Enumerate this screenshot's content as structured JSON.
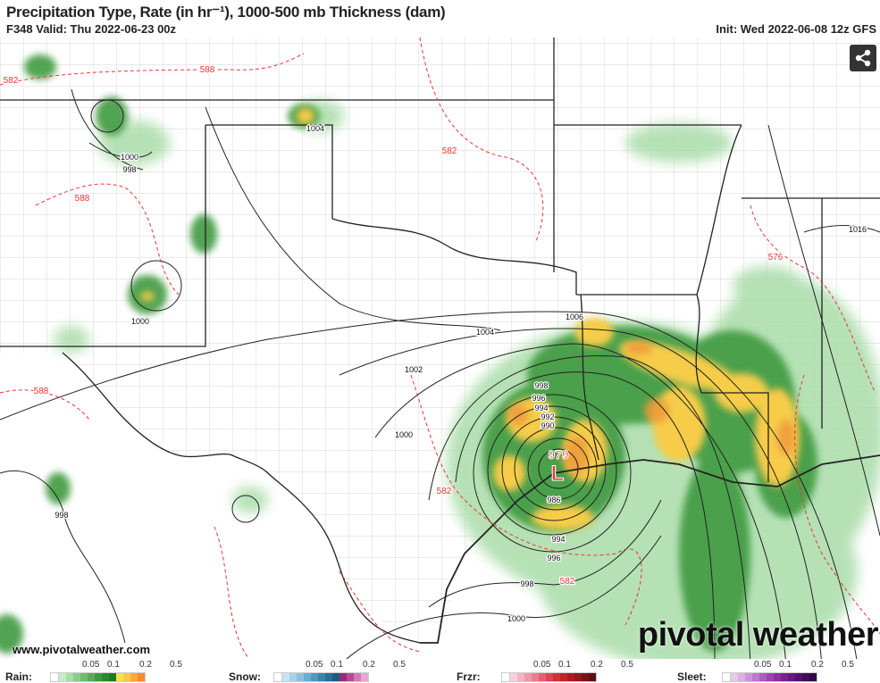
{
  "header": {
    "title": "Precipitation Type, Rate (in hr⁻¹), 1000-500 mb Thickness (dam)",
    "valid": "F348 Valid: Thu 2022-06-23 00z",
    "init": "Init: Wed 2022-06-08 12z GFS"
  },
  "share_icon": "share-icon",
  "low": {
    "pressure": "979",
    "symbol": "L",
    "color": "#e8343c"
  },
  "isobar_labels": [
    "1000",
    "998",
    "1004",
    "1000",
    "1006",
    "1004",
    "1002",
    "1000",
    "998",
    "996",
    "994",
    "992",
    "990",
    "986",
    "994",
    "996",
    "998",
    "1000",
    "998",
    "1016"
  ],
  "thickness_labels": [
    "588",
    "582",
    "582",
    "588",
    "576",
    "588",
    "582",
    "582"
  ],
  "watermark": {
    "site": "www.pivotalweather.com",
    "brand": "pivotal weather"
  },
  "legend": {
    "ticks": [
      "0.05",
      "0.1",
      "0.2",
      "0.5"
    ],
    "types": [
      {
        "label": "Rain:",
        "colors": [
          "#c8ebc8",
          "#a8dca8",
          "#8ccc8c",
          "#6fbb6f",
          "#58aa58",
          "#3f9a3f",
          "#2c8a2c",
          "#1f7a24",
          "#f5e050",
          "#fbc848",
          "#f9a83c",
          "#f58a30"
        ]
      },
      {
        "label": "Snow:",
        "colors": [
          "#c6e4f4",
          "#a8d2ec",
          "#88c0e0",
          "#6aaed2",
          "#4e98c2",
          "#3a82ae",
          "#2a6e98",
          "#1e5a82",
          "#9a2a7a",
          "#b64a96",
          "#d07ab8",
          "#e8a8d6"
        ]
      },
      {
        "label": "Frzr:",
        "colors": [
          "#f8d0dc",
          "#f4b4c4",
          "#f098a8",
          "#ec7c8c",
          "#e46070",
          "#dc4454",
          "#d03038",
          "#c02428",
          "#a81c24",
          "#901820",
          "#781418",
          "#601010"
        ]
      },
      {
        "label": "Sleet:",
        "colors": [
          "#e8c8ec",
          "#dcb0e4",
          "#cc94d8",
          "#bc78cc",
          "#ac5cc0",
          "#9c44b0",
          "#8a30a0",
          "#782290",
          "#661880",
          "#541070",
          "#420a5a",
          "#300644"
        ]
      }
    ]
  }
}
